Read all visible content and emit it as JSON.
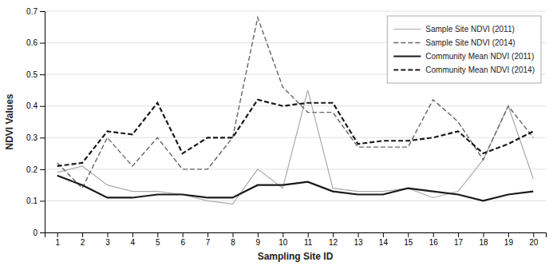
{
  "chart_data": {
    "type": "line",
    "xlabel": "Sampling Site ID",
    "ylabel": "NDVI Values",
    "x": [
      1,
      2,
      3,
      4,
      5,
      6,
      7,
      8,
      9,
      10,
      11,
      12,
      13,
      14,
      15,
      16,
      17,
      18,
      19,
      20
    ],
    "series": [
      {
        "name": "Sample Site NDVI (2011)",
        "color": "#aaaaaa",
        "line_style": "solid",
        "values": [
          0.19,
          0.21,
          0.15,
          0.13,
          0.13,
          0.12,
          0.1,
          0.09,
          0.2,
          0.14,
          0.45,
          0.14,
          0.13,
          0.13,
          0.14,
          0.11,
          0.13,
          0.23,
          0.4,
          0.17
        ]
      },
      {
        "name": "Sample Site NDVI (2014)",
        "color": "#666666",
        "line_style": "dashed",
        "values": [
          0.22,
          0.14,
          0.3,
          0.21,
          0.3,
          0.2,
          0.2,
          0.3,
          0.68,
          0.46,
          0.38,
          0.38,
          0.27,
          0.27,
          0.27,
          0.42,
          0.35,
          0.23,
          0.4,
          0.3
        ]
      },
      {
        "name": "Community Mean NDVI (2011)",
        "color": "#1a1a1a",
        "line_style": "solid",
        "values": [
          0.18,
          0.15,
          0.11,
          0.11,
          0.12,
          0.12,
          0.11,
          0.11,
          0.15,
          0.15,
          0.16,
          0.13,
          0.12,
          0.12,
          0.14,
          0.13,
          0.12,
          0.1,
          0.12,
          0.13
        ]
      },
      {
        "name": "Community Mean NDVI (2014)",
        "color": "#1a1a1a",
        "line_style": "dashed",
        "values": [
          0.21,
          0.22,
          0.32,
          0.31,
          0.41,
          0.25,
          0.3,
          0.3,
          0.42,
          0.4,
          0.41,
          0.41,
          0.28,
          0.29,
          0.29,
          0.3,
          0.32,
          0.25,
          0.28,
          0.32
        ]
      }
    ],
    "xlim": [
      0.5,
      20.5
    ],
    "xticks": [
      1,
      2,
      3,
      4,
      5,
      6,
      7,
      8,
      9,
      10,
      11,
      12,
      13,
      14,
      15,
      16,
      17,
      18,
      19,
      20
    ],
    "ylim": [
      0,
      0.7
    ],
    "yticks": [
      0,
      0.1,
      0.2,
      0.3,
      0.4,
      0.5,
      0.6,
      0.7
    ],
    "grid": true,
    "legend": "upper right"
  }
}
